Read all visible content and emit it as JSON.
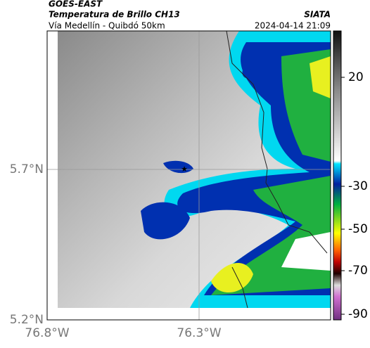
{
  "header": {
    "title": "GOES-EAST",
    "subtitle": "Temperatura de Brillo CH13",
    "route": "Vía Medellín - Quibdó 50km",
    "source": "SIATA",
    "timestamp": "2024-04-14 21:09"
  },
  "axes": {
    "lat_labels": [
      "5.7°N",
      "5.2°N"
    ],
    "lon_labels": [
      "76.8°W",
      "76.3°W"
    ]
  },
  "colorbar": {
    "tick_labels": [
      "20",
      "-30",
      "-50",
      "-70",
      "-90"
    ]
  }
}
